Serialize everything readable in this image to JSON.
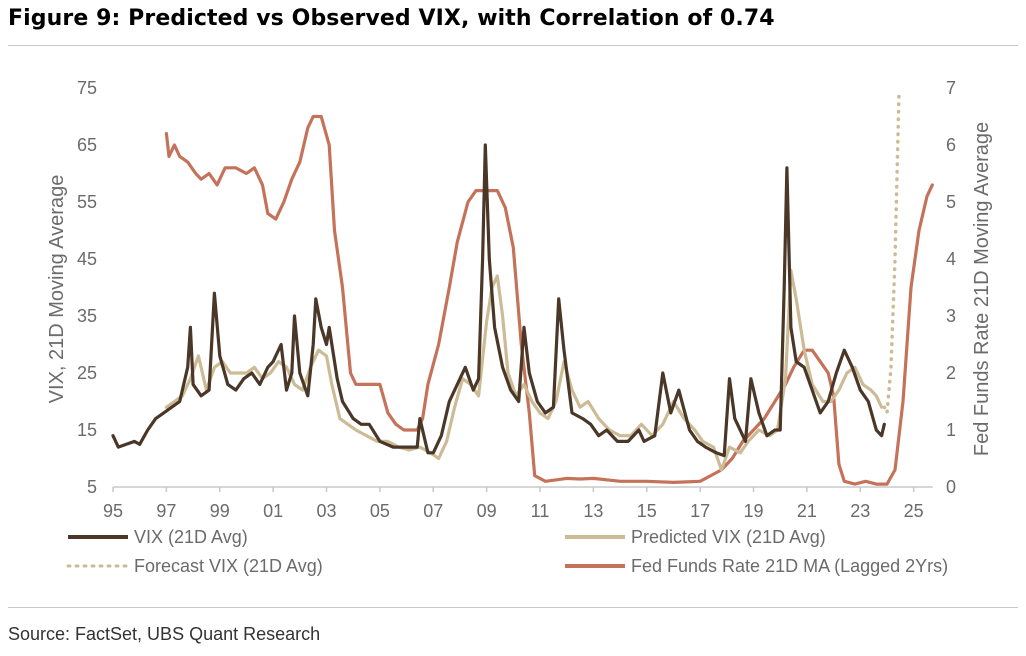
{
  "title": "Figure 9: Predicted vs Observed VIX, with Correlation of 0.74",
  "source": "Source: FactSet, UBS Quant Research",
  "colors": {
    "vix": "#4a3728",
    "predicted": "#cdbb96",
    "forecast": "#cdbb96",
    "fed": "#c4735a"
  },
  "chart_data": {
    "type": "line",
    "x_ticks": [
      "95",
      "97",
      "99",
      "01",
      "03",
      "05",
      "07",
      "09",
      "11",
      "13",
      "15",
      "17",
      "19",
      "21",
      "23",
      "25"
    ],
    "y_left": {
      "label": "VIX, 21D Moving Average",
      "ticks": [
        "5",
        "15",
        "25",
        "35",
        "45",
        "55",
        "65",
        "75"
      ],
      "range": [
        5,
        75
      ]
    },
    "y_right": {
      "label": "Fed Funds Rate 21D Moving Average",
      "ticks": [
        "0",
        "1",
        "2",
        "3",
        "4",
        "5",
        "6",
        "7"
      ],
      "range": [
        0,
        7
      ]
    },
    "xlim": [
      1995,
      2025.8
    ],
    "legend": [
      "VIX (21D Avg)",
      "Predicted VIX (21D Avg)",
      "Forecast VIX (21D Avg)",
      "Fed Funds Rate 21D MA (Lagged 2Yrs)"
    ],
    "series": [
      {
        "name": "VIX (21D Avg)",
        "axis": "left",
        "style": "solid",
        "points": [
          [
            1995.0,
            14
          ],
          [
            1995.2,
            12
          ],
          [
            1995.5,
            12.5
          ],
          [
            1995.8,
            13
          ],
          [
            1996.0,
            12.5
          ],
          [
            1996.3,
            15
          ],
          [
            1996.6,
            17
          ],
          [
            1996.9,
            18
          ],
          [
            1997.2,
            19
          ],
          [
            1997.5,
            20
          ],
          [
            1997.8,
            26
          ],
          [
            1997.9,
            33
          ],
          [
            1998.0,
            23
          ],
          [
            1998.3,
            21
          ],
          [
            1998.6,
            22
          ],
          [
            1998.8,
            39
          ],
          [
            1999.0,
            28
          ],
          [
            1999.3,
            23
          ],
          [
            1999.6,
            22
          ],
          [
            1999.9,
            24
          ],
          [
            2000.2,
            25
          ],
          [
            2000.5,
            23
          ],
          [
            2000.8,
            26
          ],
          [
            2001.0,
            27
          ],
          [
            2001.3,
            30
          ],
          [
            2001.5,
            22
          ],
          [
            2001.7,
            25
          ],
          [
            2001.8,
            35
          ],
          [
            2002.0,
            25
          ],
          [
            2002.3,
            21
          ],
          [
            2002.5,
            30
          ],
          [
            2002.6,
            38
          ],
          [
            2002.8,
            33
          ],
          [
            2003.0,
            30
          ],
          [
            2003.1,
            33
          ],
          [
            2003.4,
            24
          ],
          [
            2003.6,
            20
          ],
          [
            2004.0,
            17
          ],
          [
            2004.3,
            16
          ],
          [
            2004.6,
            16
          ],
          [
            2005.0,
            13
          ],
          [
            2005.5,
            12
          ],
          [
            2006.0,
            12
          ],
          [
            2006.4,
            12
          ],
          [
            2006.5,
            17
          ],
          [
            2006.8,
            11
          ],
          [
            2007.0,
            11
          ],
          [
            2007.3,
            14
          ],
          [
            2007.6,
            20
          ],
          [
            2007.9,
            23
          ],
          [
            2008.2,
            26
          ],
          [
            2008.5,
            22
          ],
          [
            2008.7,
            24
          ],
          [
            2008.85,
            45
          ],
          [
            2008.95,
            65
          ],
          [
            2009.1,
            45
          ],
          [
            2009.3,
            33
          ],
          [
            2009.6,
            26
          ],
          [
            2009.9,
            22
          ],
          [
            2010.2,
            20
          ],
          [
            2010.4,
            33
          ],
          [
            2010.6,
            25
          ],
          [
            2010.9,
            20
          ],
          [
            2011.2,
            18
          ],
          [
            2011.5,
            19
          ],
          [
            2011.7,
            38
          ],
          [
            2011.9,
            29
          ],
          [
            2012.2,
            18
          ],
          [
            2012.6,
            17
          ],
          [
            2012.9,
            16
          ],
          [
            2013.2,
            14
          ],
          [
            2013.5,
            15
          ],
          [
            2013.9,
            13
          ],
          [
            2014.3,
            13
          ],
          [
            2014.7,
            15
          ],
          [
            2014.9,
            13
          ],
          [
            2015.3,
            14
          ],
          [
            2015.6,
            25
          ],
          [
            2015.9,
            18
          ],
          [
            2016.2,
            22
          ],
          [
            2016.6,
            15
          ],
          [
            2016.9,
            13
          ],
          [
            2017.2,
            12
          ],
          [
            2017.6,
            11
          ],
          [
            2017.9,
            10.5
          ],
          [
            2018.1,
            24
          ],
          [
            2018.3,
            17
          ],
          [
            2018.7,
            13
          ],
          [
            2018.9,
            24
          ],
          [
            2019.2,
            18
          ],
          [
            2019.5,
            14
          ],
          [
            2019.8,
            15
          ],
          [
            2020.0,
            15
          ],
          [
            2020.15,
            40
          ],
          [
            2020.25,
            61
          ],
          [
            2020.4,
            33
          ],
          [
            2020.6,
            27
          ],
          [
            2020.9,
            26
          ],
          [
            2021.2,
            22
          ],
          [
            2021.5,
            18
          ],
          [
            2021.8,
            20
          ],
          [
            2022.1,
            25
          ],
          [
            2022.4,
            29
          ],
          [
            2022.7,
            26
          ],
          [
            2023.0,
            22
          ],
          [
            2023.3,
            20
          ],
          [
            2023.6,
            15
          ],
          [
            2023.8,
            14
          ],
          [
            2023.9,
            16
          ]
        ]
      },
      {
        "name": "Predicted VIX (21D Avg)",
        "axis": "left",
        "style": "solid",
        "points": [
          [
            1997.0,
            19
          ],
          [
            1997.3,
            20
          ],
          [
            1997.6,
            21
          ],
          [
            1997.9,
            24
          ],
          [
            1998.2,
            28
          ],
          [
            1998.5,
            22
          ],
          [
            1998.8,
            26
          ],
          [
            1999.1,
            27
          ],
          [
            1999.4,
            25
          ],
          [
            1999.7,
            25
          ],
          [
            2000.0,
            25
          ],
          [
            2000.3,
            26
          ],
          [
            2000.6,
            24
          ],
          [
            2000.9,
            25
          ],
          [
            2001.2,
            27
          ],
          [
            2001.5,
            26
          ],
          [
            2001.8,
            23
          ],
          [
            2002.1,
            22
          ],
          [
            2002.4,
            26
          ],
          [
            2002.7,
            29
          ],
          [
            2003.0,
            28
          ],
          [
            2003.2,
            23
          ],
          [
            2003.5,
            17
          ],
          [
            2003.8,
            16
          ],
          [
            2004.1,
            15
          ],
          [
            2004.5,
            14
          ],
          [
            2004.9,
            13
          ],
          [
            2005.3,
            13
          ],
          [
            2005.7,
            12
          ],
          [
            2006.1,
            11.5
          ],
          [
            2006.5,
            12
          ],
          [
            2006.9,
            11
          ],
          [
            2007.2,
            10
          ],
          [
            2007.5,
            13
          ],
          [
            2007.8,
            19
          ],
          [
            2008.1,
            24
          ],
          [
            2008.4,
            23
          ],
          [
            2008.7,
            21
          ],
          [
            2009.0,
            34
          ],
          [
            2009.2,
            40
          ],
          [
            2009.4,
            42
          ],
          [
            2009.6,
            35
          ],
          [
            2009.8,
            25
          ],
          [
            2010.1,
            21
          ],
          [
            2010.4,
            23
          ],
          [
            2010.7,
            20
          ],
          [
            2011.0,
            18
          ],
          [
            2011.3,
            17
          ],
          [
            2011.6,
            20
          ],
          [
            2011.9,
            27
          ],
          [
            2012.2,
            22
          ],
          [
            2012.5,
            19
          ],
          [
            2012.8,
            20
          ],
          [
            2013.2,
            17
          ],
          [
            2013.6,
            15
          ],
          [
            2014.0,
            14
          ],
          [
            2014.4,
            14
          ],
          [
            2014.8,
            16
          ],
          [
            2015.2,
            14
          ],
          [
            2015.6,
            16
          ],
          [
            2016.0,
            20
          ],
          [
            2016.4,
            17
          ],
          [
            2016.8,
            15
          ],
          [
            2017.1,
            13
          ],
          [
            2017.5,
            12
          ],
          [
            2017.8,
            8
          ],
          [
            2018.1,
            12
          ],
          [
            2018.5,
            11
          ],
          [
            2018.8,
            13
          ],
          [
            2019.2,
            15
          ],
          [
            2019.6,
            14
          ],
          [
            2019.9,
            15
          ],
          [
            2020.2,
            24
          ],
          [
            2020.4,
            43
          ],
          [
            2020.6,
            38
          ],
          [
            2020.9,
            29
          ],
          [
            2021.2,
            23
          ],
          [
            2021.6,
            20
          ],
          [
            2021.9,
            20
          ],
          [
            2022.2,
            22
          ],
          [
            2022.5,
            25
          ],
          [
            2022.8,
            26
          ],
          [
            2023.1,
            23
          ],
          [
            2023.4,
            22
          ],
          [
            2023.6,
            21
          ],
          [
            2023.8,
            19
          ]
        ]
      },
      {
        "name": "Forecast VIX (21D Avg)",
        "axis": "left",
        "style": "dotted",
        "points": [
          [
            2023.9,
            19
          ],
          [
            2024.0,
            18
          ],
          [
            2024.15,
            26
          ],
          [
            2024.3,
            45
          ],
          [
            2024.45,
            74
          ]
        ]
      },
      {
        "name": "Fed Funds Rate 21D MA (Lagged 2Yrs)",
        "axis": "right",
        "style": "solid",
        "points": [
          [
            1997.0,
            6.2
          ],
          [
            1997.1,
            5.8
          ],
          [
            1997.3,
            6.0
          ],
          [
            1997.5,
            5.8
          ],
          [
            1997.8,
            5.7
          ],
          [
            1998.1,
            5.5
          ],
          [
            1998.3,
            5.4
          ],
          [
            1998.6,
            5.5
          ],
          [
            1998.9,
            5.3
          ],
          [
            1999.2,
            5.6
          ],
          [
            1999.6,
            5.6
          ],
          [
            2000.0,
            5.5
          ],
          [
            2000.3,
            5.6
          ],
          [
            2000.6,
            5.3
          ],
          [
            2000.8,
            4.8
          ],
          [
            2001.1,
            4.7
          ],
          [
            2001.4,
            5.0
          ],
          [
            2001.7,
            5.4
          ],
          [
            2002.0,
            5.7
          ],
          [
            2002.3,
            6.3
          ],
          [
            2002.5,
            6.5
          ],
          [
            2002.8,
            6.5
          ],
          [
            2003.1,
            6.0
          ],
          [
            2003.3,
            4.5
          ],
          [
            2003.6,
            3.5
          ],
          [
            2003.9,
            2.0
          ],
          [
            2004.1,
            1.8
          ],
          [
            2004.4,
            1.8
          ],
          [
            2004.7,
            1.8
          ],
          [
            2005.0,
            1.8
          ],
          [
            2005.3,
            1.3
          ],
          [
            2005.6,
            1.1
          ],
          [
            2005.9,
            1.0
          ],
          [
            2006.2,
            1.0
          ],
          [
            2006.4,
            1.0
          ],
          [
            2006.6,
            1.2
          ],
          [
            2006.8,
            1.8
          ],
          [
            2007.2,
            2.5
          ],
          [
            2007.6,
            3.5
          ],
          [
            2007.9,
            4.3
          ],
          [
            2008.3,
            5.0
          ],
          [
            2008.6,
            5.2
          ],
          [
            2009.0,
            5.2
          ],
          [
            2009.4,
            5.2
          ],
          [
            2009.7,
            4.9
          ],
          [
            2010.0,
            4.2
          ],
          [
            2010.3,
            2.5
          ],
          [
            2010.6,
            1.3
          ],
          [
            2010.8,
            0.2
          ],
          [
            2011.2,
            0.1
          ],
          [
            2012.0,
            0.15
          ],
          [
            2012.5,
            0.14
          ],
          [
            2013.0,
            0.15
          ],
          [
            2014.0,
            0.1
          ],
          [
            2015.0,
            0.1
          ],
          [
            2016.0,
            0.08
          ],
          [
            2016.5,
            0.09
          ],
          [
            2017.0,
            0.1
          ],
          [
            2017.4,
            0.2
          ],
          [
            2017.8,
            0.3
          ],
          [
            2018.2,
            0.5
          ],
          [
            2018.6,
            0.8
          ],
          [
            2019.0,
            1.0
          ],
          [
            2019.4,
            1.2
          ],
          [
            2019.8,
            1.5
          ],
          [
            2020.2,
            1.8
          ],
          [
            2020.5,
            2.1
          ],
          [
            2020.9,
            2.4
          ],
          [
            2021.2,
            2.4
          ],
          [
            2021.5,
            2.2
          ],
          [
            2021.8,
            2.0
          ],
          [
            2022.0,
            1.6
          ],
          [
            2022.2,
            0.4
          ],
          [
            2022.4,
            0.1
          ],
          [
            2022.8,
            0.05
          ],
          [
            2023.2,
            0.1
          ],
          [
            2023.6,
            0.05
          ],
          [
            2024.0,
            0.05
          ],
          [
            2024.3,
            0.3
          ],
          [
            2024.6,
            1.5
          ],
          [
            2024.9,
            3.5
          ],
          [
            2025.2,
            4.5
          ],
          [
            2025.5,
            5.1
          ],
          [
            2025.7,
            5.3
          ]
        ]
      }
    ]
  }
}
